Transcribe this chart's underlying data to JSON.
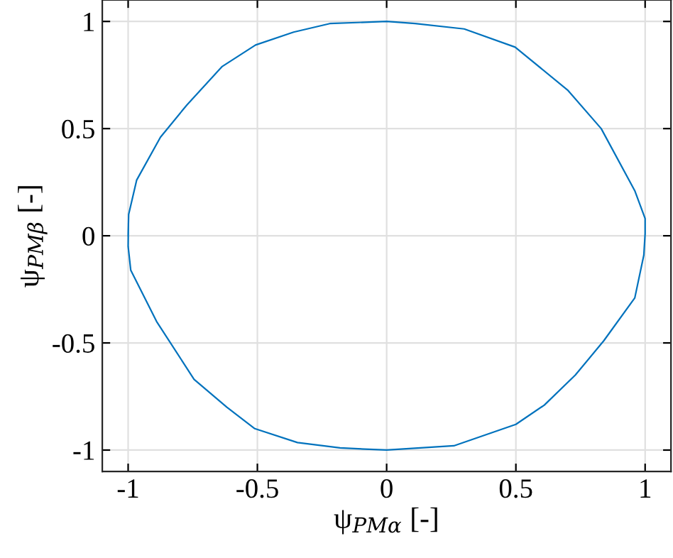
{
  "chart_data": {
    "type": "line",
    "xlabel": "ψ$_{PMα}$ [-]",
    "ylabel": "ψ$_{PMβ}$ [-]",
    "series": [
      {
        "color": "#0072bd",
        "x": [
          -1.0,
          -0.998,
          -0.967,
          -0.875,
          -0.773,
          -0.636,
          -0.507,
          -0.36,
          -0.22,
          0.0,
          0.11,
          0.3,
          0.497,
          0.7,
          0.83,
          0.96,
          1.0,
          1.0,
          0.995,
          0.96,
          0.84,
          0.73,
          0.61,
          0.5,
          0.26,
          0.0,
          -0.18,
          -0.345,
          -0.51,
          -0.618,
          -0.745,
          -0.89,
          -0.99,
          -1.0,
          -0.999
        ],
        "values": [
          0.0,
          0.1,
          0.26,
          0.46,
          0.61,
          0.79,
          0.89,
          0.95,
          0.99,
          1.0,
          0.99,
          0.965,
          0.88,
          0.68,
          0.5,
          0.21,
          0.08,
          0.01,
          -0.09,
          -0.29,
          -0.49,
          -0.65,
          -0.79,
          -0.88,
          -0.98,
          -1.0,
          -0.99,
          -0.965,
          -0.9,
          -0.8,
          -0.67,
          -0.4,
          -0.16,
          -0.05,
          0.05
        ]
      }
    ],
    "xlim": [
      -1.1,
      1.1
    ],
    "ylim": [
      -1.1,
      1.1
    ],
    "xticks": [
      -1,
      -0.5,
      0,
      0.5,
      1
    ],
    "yticks": [
      -1,
      -0.5,
      0,
      0.5,
      1
    ],
    "grid": true,
    "marker": "none",
    "line_style": "solid"
  }
}
